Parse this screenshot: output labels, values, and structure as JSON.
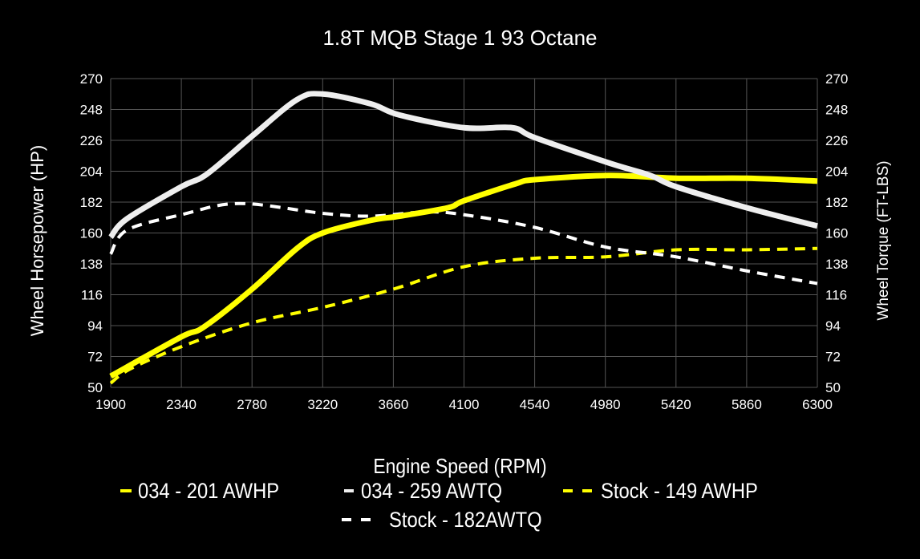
{
  "chart_data": {
    "type": "line",
    "title": "1.8T MQB Stage 1 93 Octane",
    "xlabel": "Engine Speed (RPM)",
    "ylabel": "Wheel Horsepower (HP)",
    "ylabel_right": "Wheel Torque (FT-LBS)",
    "xlim": [
      1900,
      6300
    ],
    "ylim": [
      50,
      270
    ],
    "xticks": [
      1900,
      2340,
      2780,
      3220,
      3660,
      4100,
      4540,
      4980,
      5420,
      5860,
      6300
    ],
    "yticks": [
      50,
      72,
      94,
      116,
      138,
      160,
      182,
      204,
      226,
      248,
      270
    ],
    "grid": true,
    "legend_position": "bottom",
    "background": "#000000",
    "series": [
      {
        "name": "034 - 201 AWHP",
        "color": "#ffff00",
        "style": "solid",
        "x": [
          1900,
          2340,
          2480,
          2780,
          3060,
          3220,
          3520,
          3700,
          4000,
          4100,
          4420,
          4540,
          5000,
          5420,
          5860,
          6300
        ],
        "y": [
          58,
          86,
          93,
          120,
          149,
          160,
          169,
          172,
          178,
          183,
          195,
          198,
          201,
          199,
          199,
          197
        ]
      },
      {
        "name": "034 - 259 AWTQ",
        "color": "#eeeeee",
        "style": "solid",
        "x": [
          1900,
          2000,
          2340,
          2500,
          2780,
          3060,
          3220,
          3520,
          3700,
          4100,
          4400,
          4540,
          5000,
          5260,
          5420,
          5860,
          6300
        ],
        "y": [
          157,
          170,
          193,
          202,
          229,
          255,
          259,
          252,
          244,
          235,
          235,
          228,
          210,
          201,
          193,
          178,
          165
        ]
      },
      {
        "name": "Stock - 149 AWHP",
        "color": "#ffff00",
        "style": "dashed",
        "x": [
          1900,
          2020,
          2340,
          2780,
          3220,
          3660,
          4100,
          4540,
          4980,
          5420,
          5860,
          6300
        ],
        "y": [
          53,
          63,
          79,
          96,
          107,
          120,
          136,
          142,
          143,
          148,
          148,
          149
        ]
      },
      {
        "name": "Stock - 182AWTQ",
        "color": "#ffffff",
        "style": "dashed",
        "x": [
          1900,
          2000,
          2340,
          2700,
          3220,
          3520,
          3860,
          4100,
          4540,
          4980,
          5420,
          5860,
          6300
        ],
        "y": [
          145,
          162,
          173,
          181,
          174,
          172,
          175,
          173,
          164,
          150,
          143,
          133,
          124
        ]
      }
    ]
  }
}
